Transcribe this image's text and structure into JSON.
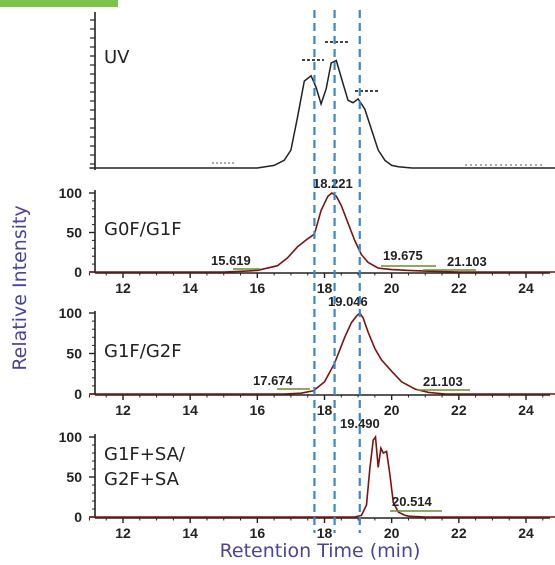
{
  "colors": {
    "accent_bar": "#7dc34a",
    "trace_uv": "#222222",
    "trace_ms": "#7a1410",
    "guide": "#3b88c9",
    "axis_title": "#4a4496",
    "baseline_marker": "#6d8a2e"
  },
  "chart_data": {
    "type": "line",
    "xlabel": "Retention Time (min)",
    "ylabel": "Relative Intensity",
    "xlim": [
      11,
      25
    ],
    "x_ticks": [
      "12",
      "14",
      "16",
      "18",
      "20",
      "22",
      "24"
    ],
    "y_ticks": [
      "0",
      "50",
      "100"
    ],
    "ylim": [
      0,
      100
    ],
    "guide_lines_x": [
      17.7,
      18.3,
      19.05
    ],
    "panels": [
      {
        "name": "UV",
        "series": {
          "x": [
            11.0,
            16.0,
            16.5,
            16.8,
            17.0,
            17.2,
            17.4,
            17.6,
            17.75,
            17.9,
            18.05,
            18.2,
            18.35,
            18.55,
            18.7,
            18.85,
            19.0,
            19.2,
            19.4,
            19.6,
            19.8,
            20.0,
            20.2,
            20.6,
            21.0,
            22.0,
            25.0
          ],
          "y": [
            0,
            0,
            2,
            6,
            14,
            40,
            68,
            72,
            63,
            50,
            62,
            82,
            84,
            66,
            53,
            51,
            54,
            46,
            30,
            14,
            6,
            2,
            1,
            0,
            0,
            0,
            0
          ]
        },
        "peak_labels": []
      },
      {
        "name": "G0F/G1F",
        "series": {
          "x": [
            11.0,
            15.0,
            15.6,
            16.0,
            16.6,
            16.9,
            17.2,
            17.5,
            17.7,
            17.9,
            18.1,
            18.22,
            18.35,
            18.5,
            18.7,
            18.9,
            19.1,
            19.3,
            19.6,
            20.0,
            20.5,
            21.1,
            22.0,
            25.0
          ],
          "y": [
            0,
            0,
            1,
            2,
            8,
            18,
            32,
            42,
            48,
            78,
            96,
            100,
            96,
            84,
            62,
            40,
            22,
            12,
            5,
            3,
            2,
            1,
            0,
            0
          ]
        },
        "peak_labels": [
          "18.221",
          "15.619",
          "19.675",
          "21.103"
        ]
      },
      {
        "name": "G1F/G2F",
        "series": {
          "x": [
            11.0,
            16.8,
            17.3,
            17.67,
            18.0,
            18.3,
            18.6,
            18.8,
            18.95,
            19.05,
            19.15,
            19.3,
            19.5,
            19.7,
            20.0,
            20.3,
            20.7,
            21.1,
            21.6,
            25.0
          ],
          "y": [
            0,
            0,
            1,
            4,
            15,
            38,
            70,
            88,
            96,
            100,
            94,
            76,
            56,
            42,
            28,
            15,
            6,
            2,
            0,
            0
          ]
        },
        "peak_labels": [
          "19.046",
          "17.674",
          "21.103"
        ]
      },
      {
        "name": "G1F+SA/\nG2F+SA",
        "series": {
          "x": [
            11.0,
            18.9,
            19.1,
            19.25,
            19.35,
            19.45,
            19.52,
            19.6,
            19.68,
            19.75,
            19.85,
            19.95,
            20.05,
            20.2,
            20.4,
            20.5,
            21.0,
            25.0
          ],
          "y": [
            0,
            0,
            2,
            15,
            60,
            96,
            100,
            62,
            86,
            80,
            82,
            52,
            18,
            6,
            2,
            1,
            0,
            0
          ]
        },
        "peak_labels": [
          "19.490",
          "20.514"
        ]
      }
    ]
  }
}
